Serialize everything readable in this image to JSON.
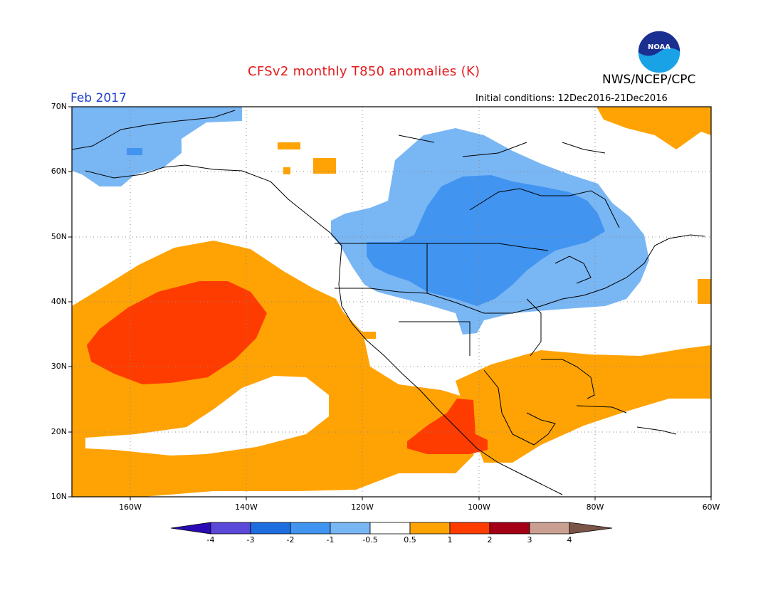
{
  "header": {
    "title": "CFSv2 monthly T850 anomalies (K)",
    "org": "NWS/NCEP/CPC",
    "initial_conditions": "Initial conditions: 12Dec2016-21Dec2016",
    "month": "Feb 2017",
    "logo_text": "NOAA"
  },
  "map": {
    "lon_range": [
      -170,
      -60
    ],
    "lat_range": [
      10,
      70
    ],
    "lat_labels": [
      "70N",
      "60N",
      "50N",
      "40N",
      "30N",
      "20N",
      "10N"
    ],
    "lon_labels": [
      "160W",
      "140W",
      "120W",
      "100W",
      "80W",
      "60W"
    ],
    "colors": {
      "neg4": "#2a0ab4",
      "neg3": "#5a48d8",
      "neg2": "#1e6ee0",
      "neg1": "#4194f0",
      "neg05": "#79b6f4",
      "zero": "#ffffff",
      "pos05": "#ffa305",
      "pos1": "#ff3c00",
      "pos2": "#a50015",
      "pos3": "#c9a091",
      "pos4": "#7a5548"
    }
  },
  "colorbar": {
    "labels": [
      "-4",
      "-3",
      "-2",
      "-1",
      "-0.5",
      "0.5",
      "1",
      "2",
      "3",
      "4"
    ]
  }
}
